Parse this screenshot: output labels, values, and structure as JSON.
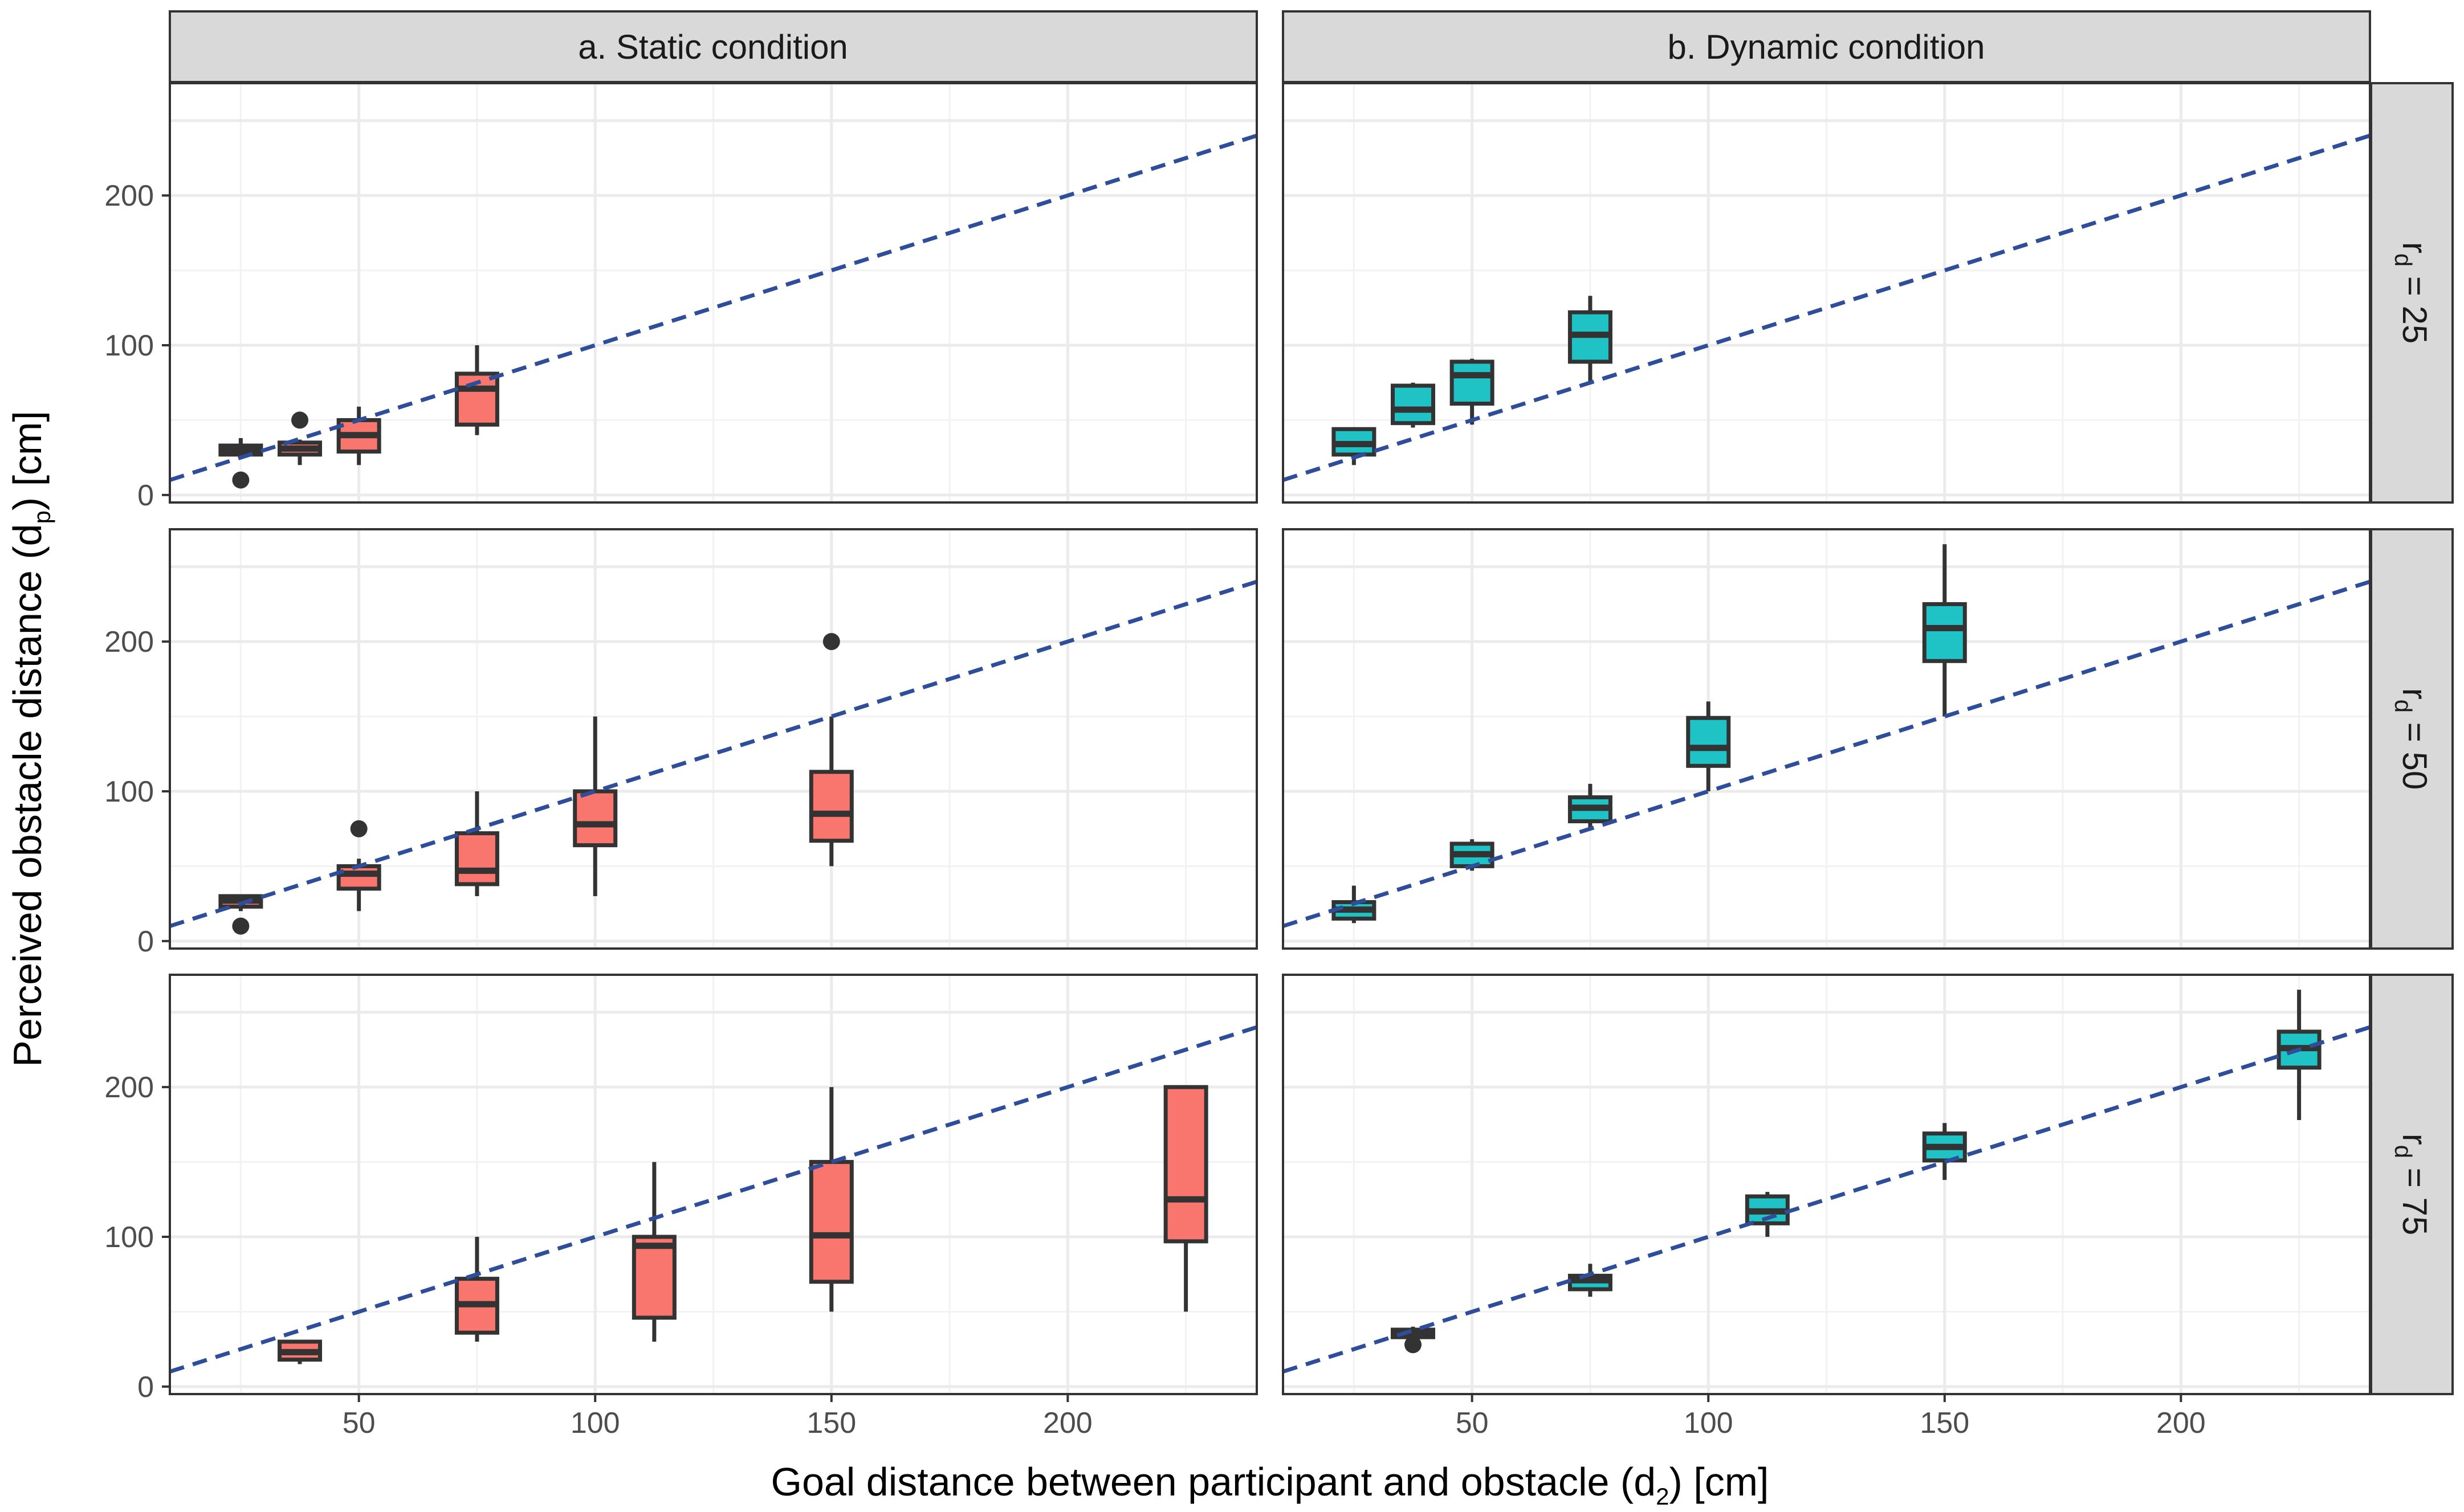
{
  "chart_data": {
    "type": "boxplot",
    "xlabel": {
      "main": "Goal distance between participant and obstacle (d",
      "sub": "2",
      "tail": ") [cm]"
    },
    "ylabel": {
      "main": "Perceived obstacle distance (d",
      "sub": "p",
      "tail": ") [cm]"
    },
    "xlim": [
      10,
      240
    ],
    "ylim": [
      -5,
      275
    ],
    "x_ticks": [
      50,
      100,
      150,
      200
    ],
    "y_ticks": [
      0,
      100,
      200
    ],
    "grid": true,
    "reference_line": {
      "style": "dashed",
      "color": "#2e4d9b",
      "slope": 1,
      "intercept": 0
    },
    "columns": [
      {
        "key": "static",
        "label": "a. Static condition",
        "fill": "#f8766d"
      },
      {
        "key": "dynamic",
        "label": "b. Dynamic condition",
        "fill": "#1fc3c6"
      }
    ],
    "rows": [
      {
        "main": "r",
        "sub": "d",
        "tail": " = 25"
      },
      {
        "main": "r",
        "sub": "d",
        "tail": " = 50"
      },
      {
        "main": "r",
        "sub": "d",
        "tail": " = 75"
      }
    ],
    "panels": [
      {
        "col": 0,
        "row": 0,
        "boxes": [
          {
            "x": 25,
            "q1": 27,
            "median": 30,
            "q3": 33,
            "lo": 25,
            "hi": 38,
            "outliers": [
              10
            ]
          },
          {
            "x": 37.5,
            "q1": 27,
            "median": 31,
            "q3": 35,
            "lo": 20,
            "hi": 37,
            "outliers": [
              50
            ]
          },
          {
            "x": 50,
            "q1": 29,
            "median": 40,
            "q3": 50,
            "lo": 20,
            "hi": 59,
            "outliers": []
          },
          {
            "x": 75,
            "q1": 47,
            "median": 71,
            "q3": 81,
            "lo": 40,
            "hi": 100,
            "outliers": []
          }
        ]
      },
      {
        "col": 1,
        "row": 0,
        "boxes": [
          {
            "x": 25,
            "q1": 27,
            "median": 34,
            "q3": 44,
            "lo": 20,
            "hi": 45,
            "outliers": []
          },
          {
            "x": 37.5,
            "q1": 48,
            "median": 57,
            "q3": 73,
            "lo": 45,
            "hi": 75,
            "outliers": []
          },
          {
            "x": 50,
            "q1": 61,
            "median": 80,
            "q3": 89,
            "lo": 47,
            "hi": 91,
            "outliers": []
          },
          {
            "x": 75,
            "q1": 89,
            "median": 107,
            "q3": 122,
            "lo": 75,
            "hi": 133,
            "outliers": []
          }
        ]
      },
      {
        "col": 0,
        "row": 1,
        "boxes": [
          {
            "x": 25,
            "q1": 23,
            "median": 27,
            "q3": 30,
            "lo": 20,
            "hi": 30,
            "outliers": [
              10
            ]
          },
          {
            "x": 50,
            "q1": 35,
            "median": 45,
            "q3": 50,
            "lo": 20,
            "hi": 55,
            "outliers": [
              75
            ]
          },
          {
            "x": 75,
            "q1": 38,
            "median": 47,
            "q3": 72,
            "lo": 30,
            "hi": 100,
            "outliers": []
          },
          {
            "x": 100,
            "q1": 64,
            "median": 78,
            "q3": 100,
            "lo": 30,
            "hi": 150,
            "outliers": []
          },
          {
            "x": 150,
            "q1": 67,
            "median": 85,
            "q3": 113,
            "lo": 50,
            "hi": 150,
            "outliers": [
              200
            ]
          }
        ]
      },
      {
        "col": 1,
        "row": 1,
        "boxes": [
          {
            "x": 25,
            "q1": 15,
            "median": 21,
            "q3": 26,
            "lo": 12,
            "hi": 37,
            "outliers": []
          },
          {
            "x": 50,
            "q1": 50,
            "median": 58,
            "q3": 65,
            "lo": 47,
            "hi": 68,
            "outliers": []
          },
          {
            "x": 75,
            "q1": 80,
            "median": 89,
            "q3": 96,
            "lo": 75,
            "hi": 105,
            "outliers": []
          },
          {
            "x": 100,
            "q1": 117,
            "median": 129,
            "q3": 149,
            "lo": 100,
            "hi": 160,
            "outliers": []
          },
          {
            "x": 150,
            "q1": 187,
            "median": 209,
            "q3": 225,
            "lo": 150,
            "hi": 265,
            "outliers": []
          }
        ]
      },
      {
        "col": 0,
        "row": 2,
        "boxes": [
          {
            "x": 37.5,
            "q1": 18,
            "median": 23,
            "q3": 30,
            "lo": 15,
            "hi": 30,
            "outliers": []
          },
          {
            "x": 75,
            "q1": 36,
            "median": 55,
            "q3": 72,
            "lo": 30,
            "hi": 100,
            "outliers": []
          },
          {
            "x": 112.5,
            "q1": 46,
            "median": 94,
            "q3": 100,
            "lo": 30,
            "hi": 150,
            "outliers": []
          },
          {
            "x": 150,
            "q1": 70,
            "median": 101,
            "q3": 150,
            "lo": 50,
            "hi": 200,
            "outliers": []
          },
          {
            "x": 225,
            "q1": 97,
            "median": 125,
            "q3": 200,
            "lo": 50,
            "hi": 200,
            "outliers": []
          }
        ]
      },
      {
        "col": 1,
        "row": 2,
        "boxes": [
          {
            "x": 37.5,
            "q1": 33,
            "median": 36,
            "q3": 38,
            "lo": 30,
            "hi": 40,
            "outliers": [
              28
            ]
          },
          {
            "x": 75,
            "q1": 65,
            "median": 71,
            "q3": 74,
            "lo": 60,
            "hi": 82,
            "outliers": []
          },
          {
            "x": 112.5,
            "q1": 109,
            "median": 117,
            "q3": 127,
            "lo": 100,
            "hi": 130,
            "outliers": []
          },
          {
            "x": 150,
            "q1": 151,
            "median": 160,
            "q3": 169,
            "lo": 138,
            "hi": 176,
            "outliers": []
          },
          {
            "x": 225,
            "q1": 213,
            "median": 226,
            "q3": 237,
            "lo": 178,
            "hi": 265,
            "outliers": []
          }
        ]
      }
    ]
  }
}
